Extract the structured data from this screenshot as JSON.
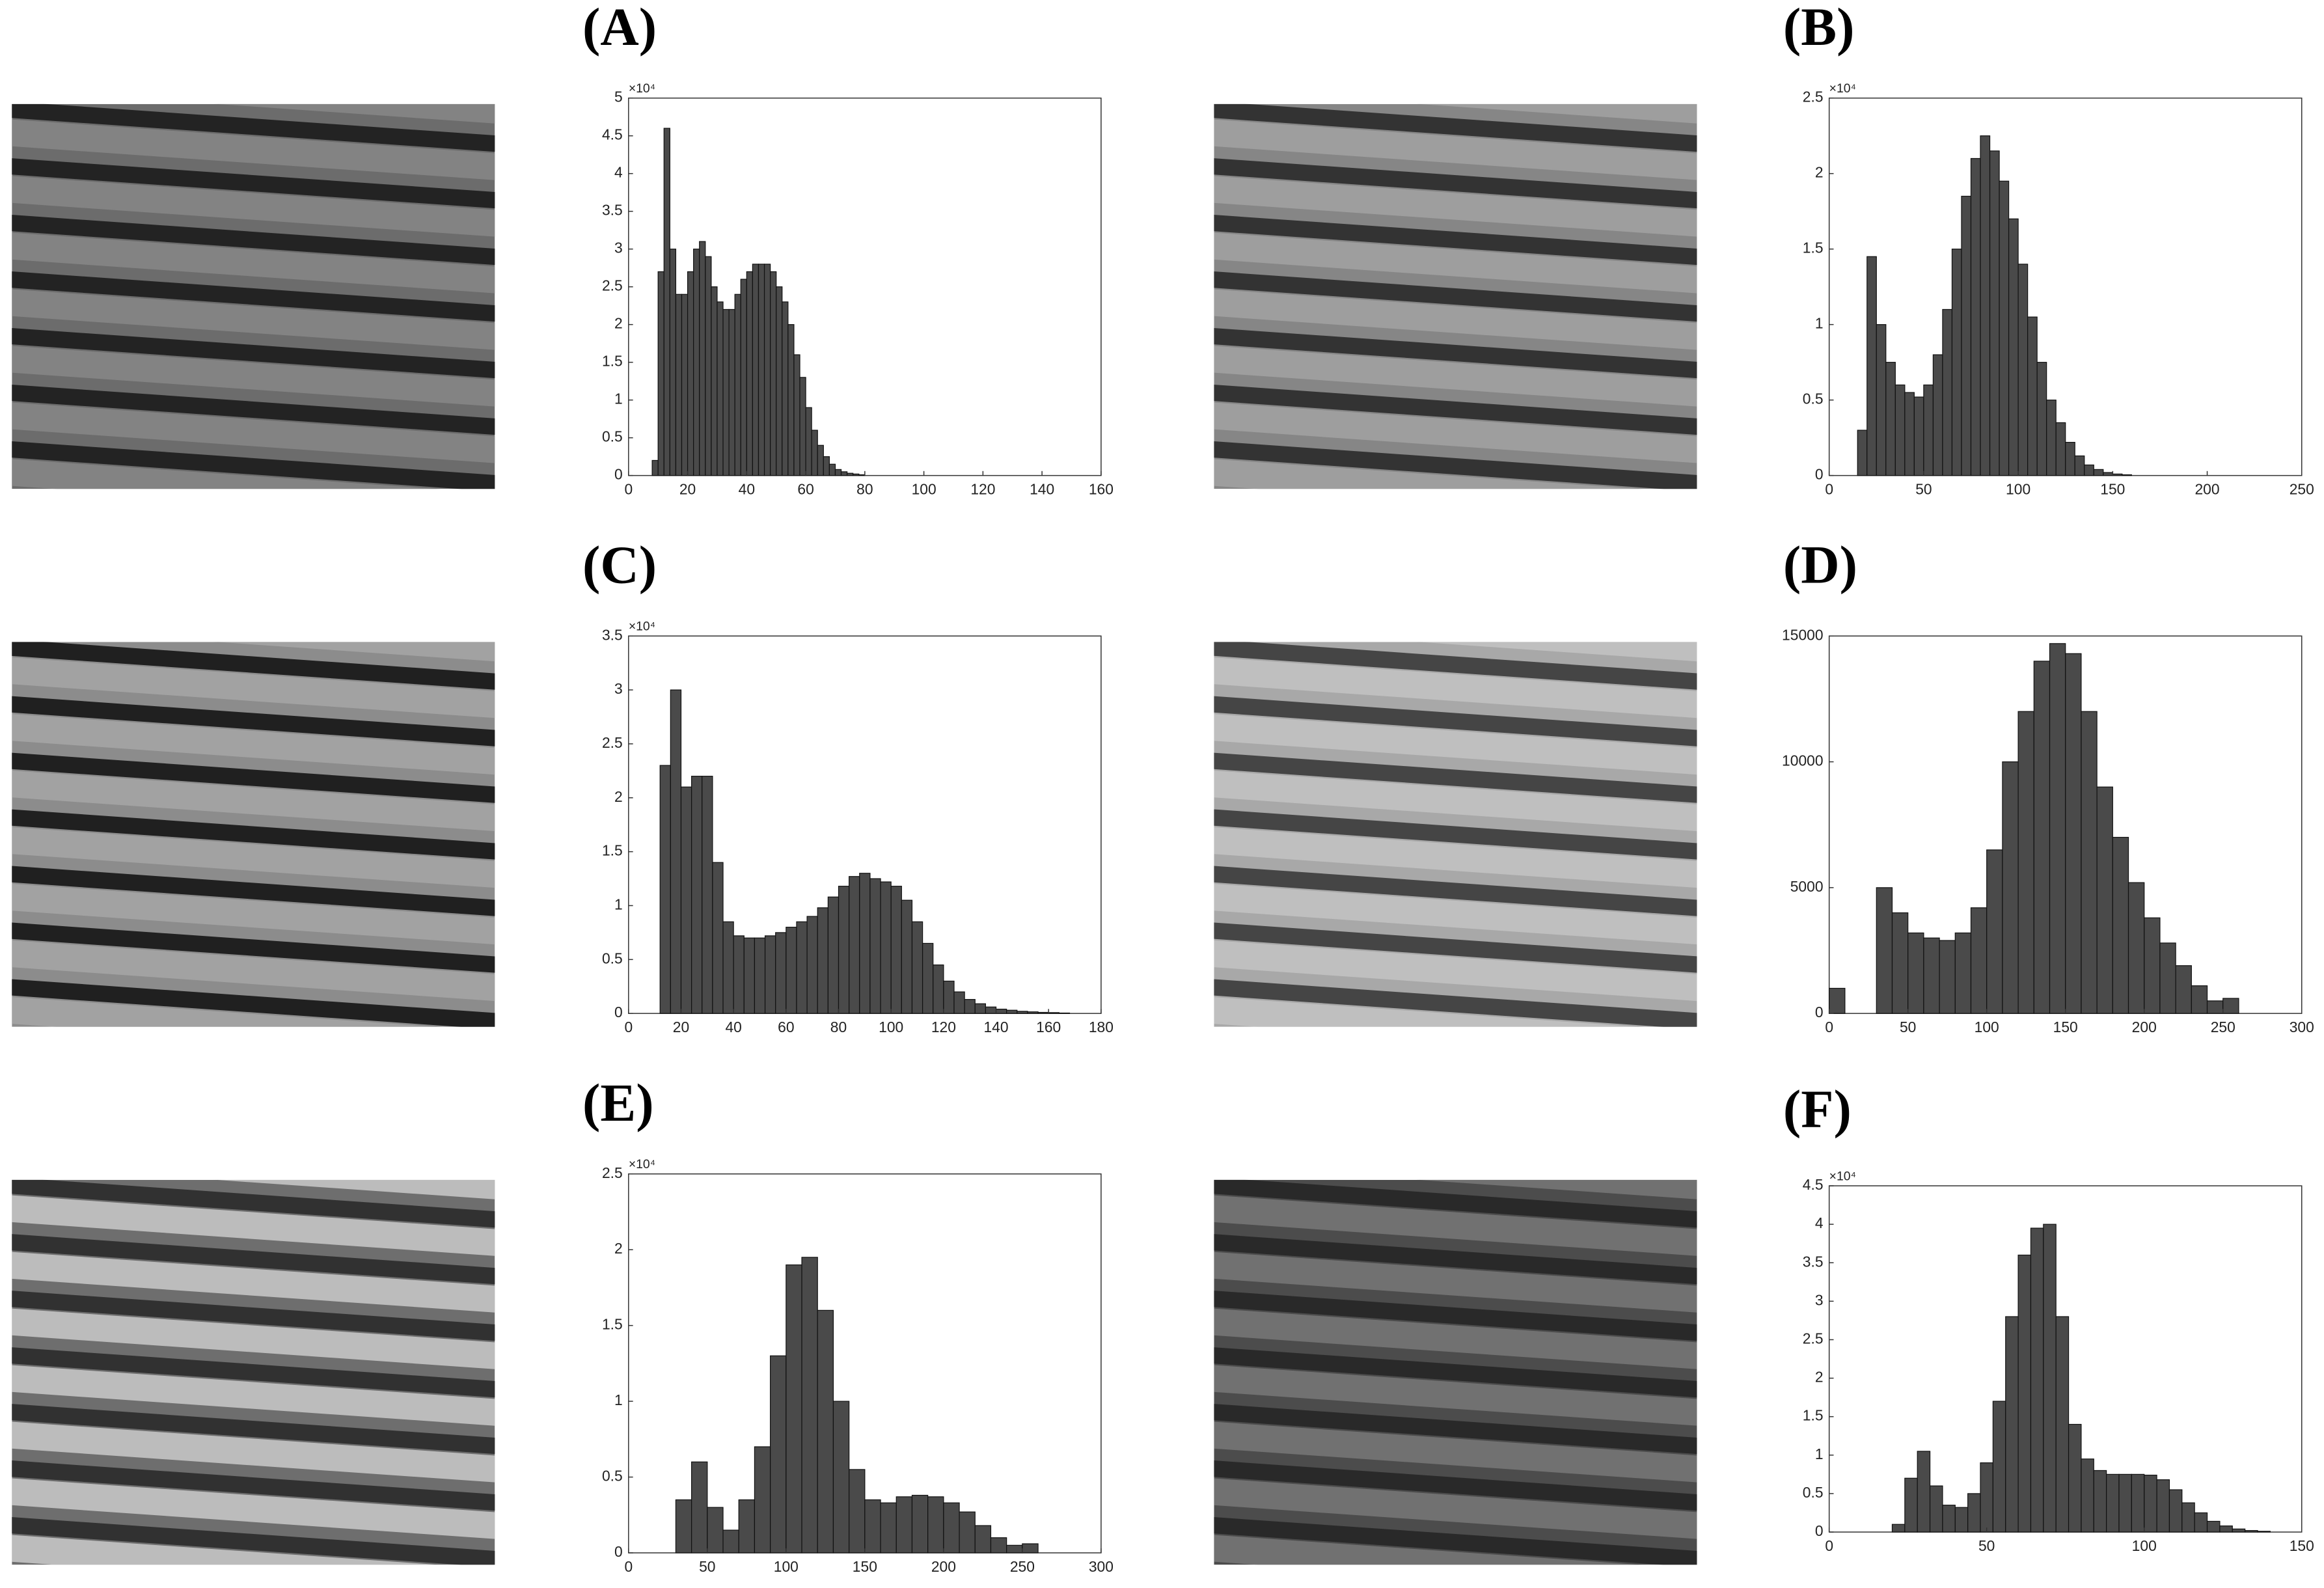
{
  "chart_data": [
    {
      "type": "histogram",
      "title": "(A)",
      "y_exponent": "×10⁴",
      "color": "#4a4a4a",
      "bins": [
        8,
        10,
        12,
        14,
        16,
        18,
        20,
        22,
        24,
        26,
        28,
        30,
        32,
        34,
        36,
        38,
        40,
        42,
        44,
        46,
        48,
        50,
        52,
        54,
        56,
        58,
        60,
        62,
        64,
        66,
        68,
        70,
        72,
        74,
        76,
        78,
        80
      ],
      "values": [
        0.2,
        2.7,
        4.6,
        3.0,
        2.4,
        2.4,
        2.7,
        3.0,
        3.1,
        2.9,
        2.5,
        2.3,
        2.2,
        2.2,
        2.4,
        2.6,
        2.7,
        2.8,
        2.8,
        2.8,
        2.7,
        2.5,
        2.3,
        2.0,
        1.6,
        1.3,
        0.9,
        0.6,
        0.4,
        0.25,
        0.15,
        0.08,
        0.05,
        0.03,
        0.02,
        0.01
      ],
      "xlim": [
        0,
        160
      ],
      "xticks": [
        0,
        20,
        40,
        60,
        80,
        100,
        120,
        140,
        160
      ],
      "ylim": [
        0,
        5
      ],
      "yticks": [
        0,
        0.5,
        1,
        1.5,
        2,
        2.5,
        3,
        3.5,
        4,
        4.5,
        5
      ]
    },
    {
      "type": "histogram",
      "title": "(B)",
      "y_exponent": "×10⁴",
      "color": "#4a4a4a",
      "bins": [
        15,
        20,
        25,
        30,
        35,
        40,
        45,
        50,
        55,
        60,
        65,
        70,
        75,
        80,
        85,
        90,
        95,
        100,
        105,
        110,
        115,
        120,
        125,
        130,
        135,
        140,
        145,
        150,
        155,
        160
      ],
      "values": [
        0.3,
        1.45,
        1.0,
        0.75,
        0.6,
        0.55,
        0.52,
        0.6,
        0.8,
        1.1,
        1.5,
        1.85,
        2.1,
        2.25,
        2.15,
        1.95,
        1.7,
        1.4,
        1.05,
        0.75,
        0.5,
        0.35,
        0.22,
        0.13,
        0.07,
        0.04,
        0.02,
        0.01,
        0.005
      ],
      "xlim": [
        0,
        250
      ],
      "xticks": [
        0,
        50,
        100,
        150,
        200,
        250
      ],
      "ylim": [
        0,
        2.5
      ],
      "yticks": [
        0,
        0.5,
        1,
        1.5,
        2,
        2.5
      ]
    },
    {
      "type": "histogram",
      "title": "(C)",
      "y_exponent": "×10⁴",
      "color": "#4a4a4a",
      "bins": [
        12,
        16,
        20,
        24,
        28,
        32,
        36,
        40,
        44,
        48,
        52,
        56,
        60,
        64,
        68,
        72,
        76,
        80,
        84,
        88,
        92,
        96,
        100,
        104,
        108,
        112,
        116,
        120,
        124,
        128,
        132,
        136,
        140,
        144,
        148,
        152,
        156,
        160,
        164,
        168
      ],
      "values": [
        2.3,
        3.0,
        2.1,
        2.2,
        2.2,
        1.4,
        0.85,
        0.72,
        0.7,
        0.7,
        0.72,
        0.75,
        0.8,
        0.85,
        0.9,
        0.98,
        1.08,
        1.18,
        1.27,
        1.3,
        1.25,
        1.22,
        1.18,
        1.05,
        0.85,
        0.65,
        0.45,
        0.3,
        0.2,
        0.13,
        0.09,
        0.06,
        0.04,
        0.03,
        0.02,
        0.015,
        0.01,
        0.008,
        0.004
      ],
      "xlim": [
        0,
        180
      ],
      "xticks": [
        0,
        20,
        40,
        60,
        80,
        100,
        120,
        140,
        160,
        180
      ],
      "ylim": [
        0,
        3.5
      ],
      "yticks": [
        0,
        0.5,
        1,
        1.5,
        2,
        2.5,
        3,
        3.5
      ]
    },
    {
      "type": "histogram",
      "title": "(D)",
      "color": "#4a4a4a",
      "bins": [
        0,
        10,
        20,
        30,
        40,
        50,
        60,
        70,
        80,
        90,
        100,
        110,
        120,
        130,
        140,
        150,
        160,
        170,
        180,
        190,
        200,
        210,
        220,
        230,
        240,
        250,
        260
      ],
      "values": [
        1000,
        0,
        0,
        5000,
        4000,
        3200,
        3000,
        2900,
        3200,
        4200,
        6500,
        10000,
        12000,
        14000,
        14700,
        14300,
        12000,
        9000,
        7000,
        5200,
        3800,
        2800,
        1900,
        1100,
        500,
        600
      ],
      "xlim": [
        0,
        300
      ],
      "xticks": [
        0,
        50,
        100,
        150,
        200,
        250,
        300
      ],
      "ylim": [
        0,
        15000
      ],
      "yticks": [
        0,
        5000,
        10000,
        15000
      ]
    },
    {
      "type": "histogram",
      "title": "(E)",
      "y_exponent": "×10⁴",
      "color": "#4a4a4a",
      "bins": [
        30,
        40,
        50,
        60,
        70,
        80,
        90,
        100,
        110,
        120,
        130,
        140,
        150,
        160,
        170,
        180,
        190,
        200,
        210,
        220,
        230,
        240,
        250,
        260
      ],
      "values": [
        0.35,
        0.6,
        0.3,
        0.15,
        0.35,
        0.7,
        1.3,
        1.9,
        1.95,
        1.6,
        1.0,
        0.55,
        0.35,
        0.33,
        0.37,
        0.38,
        0.37,
        0.33,
        0.27,
        0.18,
        0.1,
        0.05,
        0.06
      ],
      "xlim": [
        0,
        300
      ],
      "xticks": [
        0,
        50,
        100,
        150,
        200,
        250,
        300
      ],
      "ylim": [
        0,
        2.5
      ],
      "yticks": [
        0,
        0.5,
        1,
        1.5,
        2,
        2.5
      ]
    },
    {
      "type": "histogram",
      "title": "(F)",
      "y_exponent": "×10⁴",
      "color": "#4a4a4a",
      "bins": [
        20,
        24,
        28,
        32,
        36,
        40,
        44,
        48,
        52,
        56,
        60,
        64,
        68,
        72,
        76,
        80,
        84,
        88,
        92,
        96,
        100,
        104,
        108,
        112,
        116,
        120,
        124,
        128,
        132,
        136,
        140
      ],
      "values": [
        0.1,
        0.7,
        1.05,
        0.6,
        0.35,
        0.32,
        0.5,
        0.9,
        1.7,
        2.8,
        3.6,
        3.95,
        4.0,
        2.8,
        1.4,
        0.95,
        0.8,
        0.75,
        0.75,
        0.75,
        0.74,
        0.68,
        0.55,
        0.38,
        0.25,
        0.14,
        0.08,
        0.04,
        0.02,
        0.01
      ],
      "xlim": [
        0,
        150
      ],
      "xticks": [
        0,
        50,
        100,
        150
      ],
      "ylim": [
        0,
        4.5
      ],
      "yticks": [
        0,
        0.5,
        1,
        1.5,
        2,
        2.5,
        3,
        3.5,
        4,
        4.5
      ]
    }
  ]
}
